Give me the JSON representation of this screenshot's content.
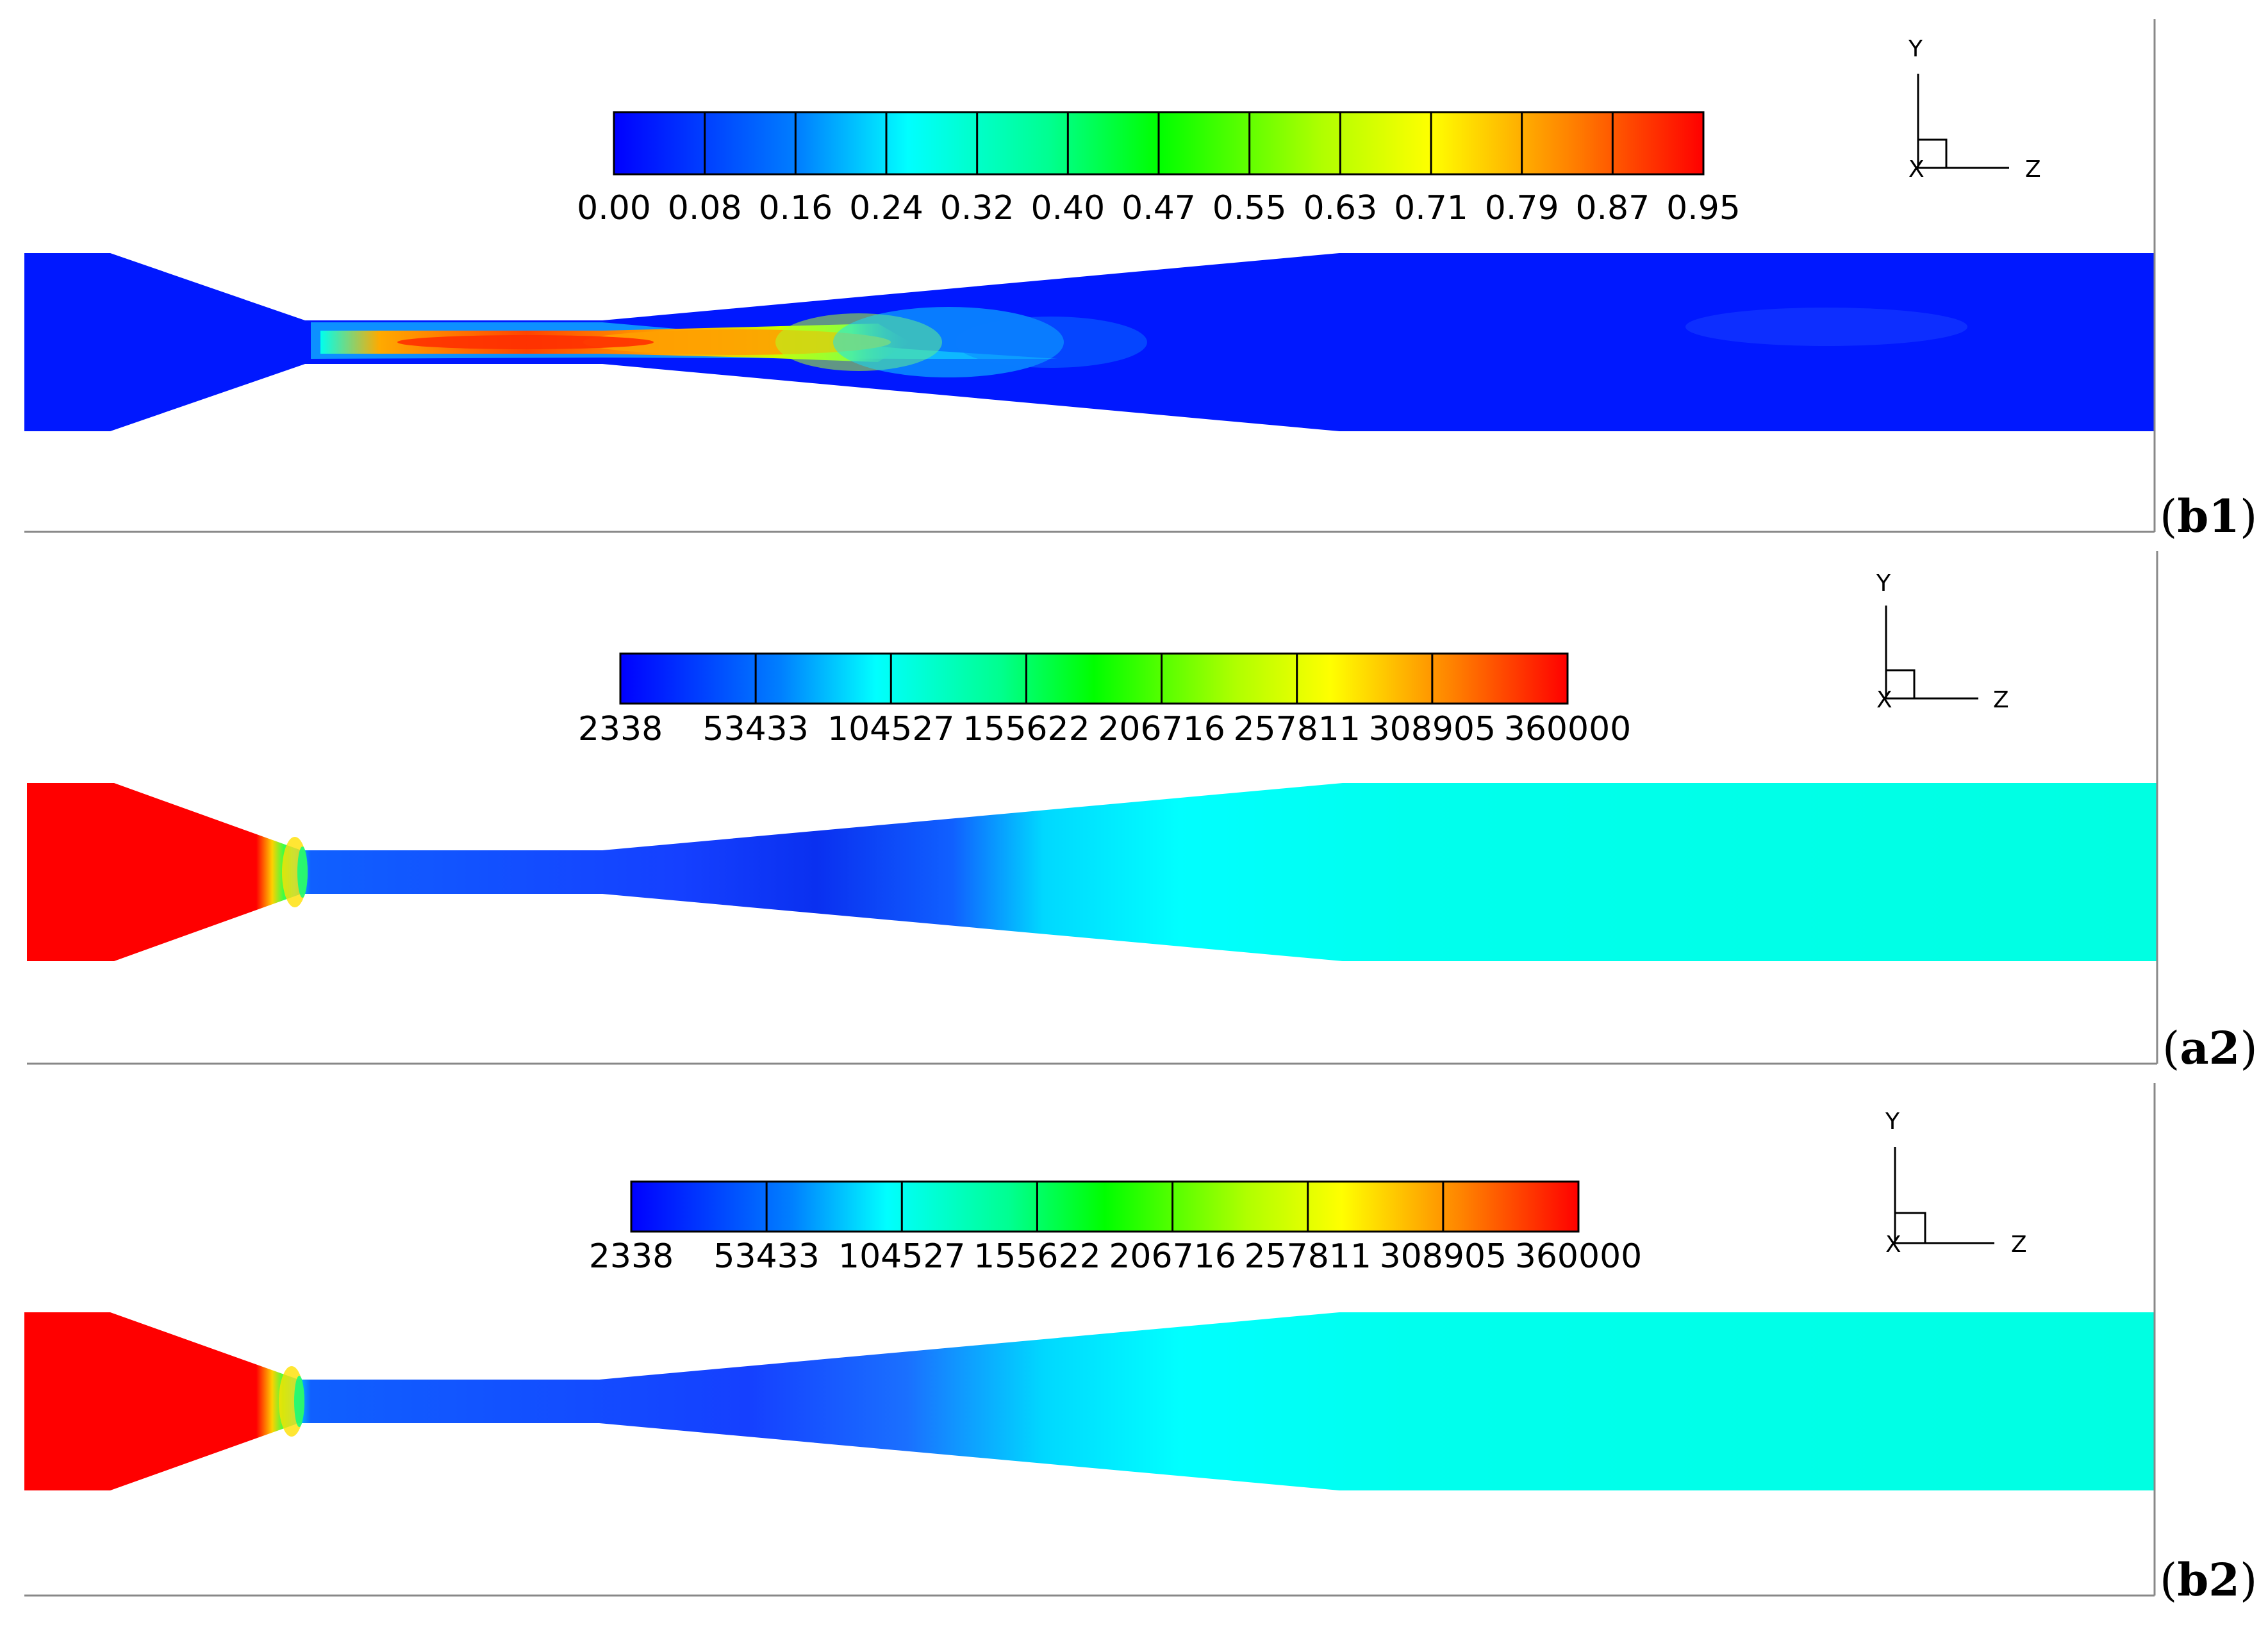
{
  "panels": [
    {
      "label_bold": "b1",
      "colorbar_ticks": [
        "0.00",
        "0.08",
        "0.16",
        "0.24",
        "0.32",
        "0.40",
        "0.47",
        "0.55",
        "0.63",
        "0.71",
        "0.79",
        "0.87",
        "0.95"
      ],
      "axes": {
        "y": "Y",
        "x": "X",
        "z": "Z"
      }
    },
    {
      "label_bold": "a2",
      "colorbar_ticks": [
        "2338",
        "53433",
        "104527",
        "155622",
        "206716",
        "257811",
        "308905",
        "360000"
      ],
      "axes": {
        "y": "Y",
        "x": "X",
        "z": "Z"
      }
    },
    {
      "label_bold": "b2",
      "colorbar_ticks": [
        "2338",
        "53433",
        "104527",
        "155622",
        "206716",
        "257811",
        "308905",
        "360000"
      ],
      "axes": {
        "y": "Y",
        "x": "X",
        "z": "Z"
      }
    }
  ],
  "colors": {
    "blue": "#0018ff",
    "cyan": "#00ffe6",
    "red": "#ff0000"
  }
}
